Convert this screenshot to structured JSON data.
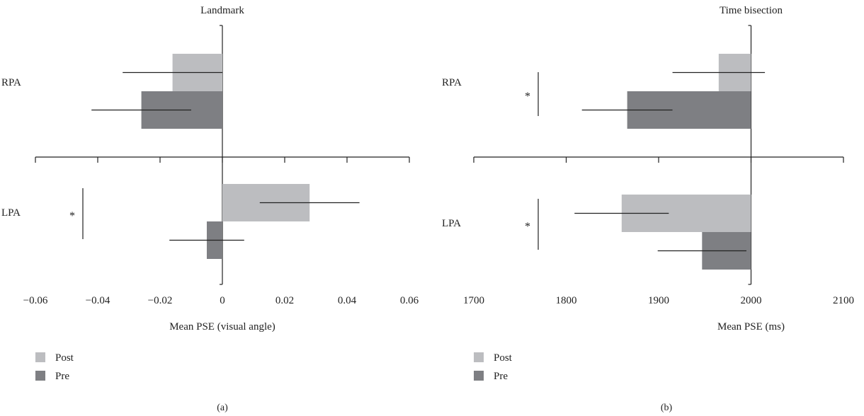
{
  "figure": {
    "panels": [
      {
        "label": "(a)",
        "legend": [
          "Post",
          "Pre"
        ]
      },
      {
        "label": "(b)",
        "legend": [
          "Post",
          "Pre"
        ]
      }
    ]
  },
  "colors": {
    "post": "#bcbdc0",
    "pre": "#7e7f83",
    "axis": "#222222",
    "errorbar": "#222222"
  },
  "chart_data": [
    {
      "type": "bar",
      "orientation": "horizontal",
      "title": "Landmark",
      "xlabel": "Mean PSE (visual angle)",
      "ylabel": "",
      "categories": [
        "RPA",
        "LPA"
      ],
      "xlim": [
        -0.06,
        0.06
      ],
      "xticks": [
        "−0.06",
        "−0.04",
        "−0.02",
        "0",
        "0.02",
        "0.04",
        "0.06"
      ],
      "xtick_values": [
        -0.06,
        -0.04,
        -0.02,
        0,
        0.02,
        0.04,
        0.06
      ],
      "bar_origin": 0,
      "legend_position": "bottom-left",
      "grid": false,
      "series": [
        {
          "name": "Post",
          "color": "#bcbdc0",
          "values": [
            -0.016,
            0.028
          ],
          "errors": [
            0.016,
            0.016
          ]
        },
        {
          "name": "Pre",
          "color": "#7e7f83",
          "values": [
            -0.026,
            -0.005
          ],
          "errors": [
            0.016,
            0.012
          ]
        }
      ],
      "significance": [
        {
          "category": "LPA",
          "label": "*"
        }
      ]
    },
    {
      "type": "bar",
      "orientation": "horizontal",
      "title": "Time bisection",
      "xlabel": "Mean PSE (ms)",
      "ylabel": "",
      "categories": [
        "RPA",
        "LPA"
      ],
      "xlim": [
        1700,
        2100
      ],
      "xticks": [
        "1700",
        "1800",
        "1900",
        "2000",
        "2100"
      ],
      "xtick_values": [
        1700,
        1800,
        1900,
        2000,
        2100
      ],
      "bar_origin": 2000,
      "legend_position": "bottom-left",
      "grid": false,
      "series": [
        {
          "name": "Post",
          "color": "#bcbdc0",
          "values": [
            1965,
            1860
          ],
          "errors": [
            50,
            51
          ]
        },
        {
          "name": "Pre",
          "color": "#7e7f83",
          "values": [
            1866,
            1947
          ],
          "errors": [
            49,
            48
          ]
        }
      ],
      "significance": [
        {
          "category": "RPA",
          "label": "*"
        },
        {
          "category": "LPA",
          "label": "*"
        }
      ]
    }
  ]
}
